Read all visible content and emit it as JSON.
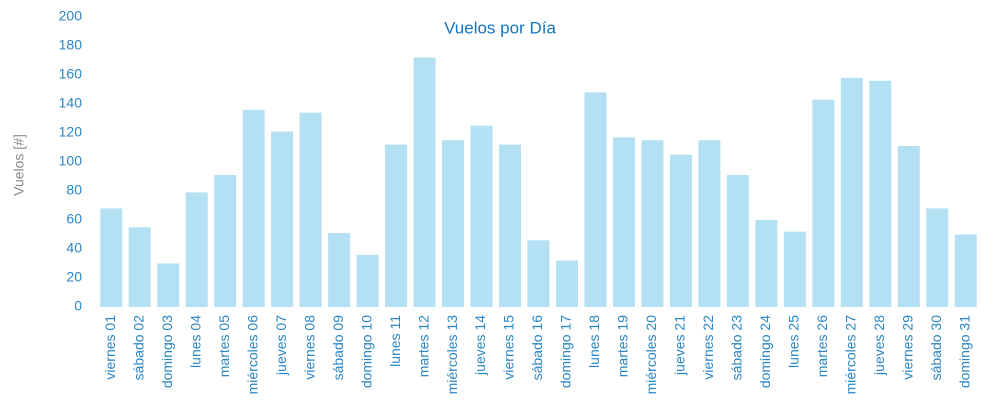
{
  "chart_data": {
    "type": "bar",
    "title": "Vuelos por Día",
    "y_label": "Vuelos [#]",
    "categories": [
      "viernes 01",
      "sábado 02",
      "domingo 03",
      "lunes 04",
      "martes 05",
      "miércoles 06",
      "jueves 07",
      "viernes 08",
      "sábado 09",
      "domingo 10",
      "lunes 11",
      "martes 12",
      "miércoles 13",
      "jueves 14",
      "viernes 15",
      "sábado 16",
      "domingo 17",
      "lunes 18",
      "martes 19",
      "miércoles 20",
      "jueves 21",
      "viernes 22",
      "sábado 23",
      "domingo 24",
      "lunes 25",
      "martes 26",
      "miércoles 27",
      "jueves 28",
      "viernes 29",
      "sábado 30",
      "domingo 31"
    ],
    "values": [
      68,
      55,
      30,
      79,
      91,
      136,
      121,
      134,
      51,
      36,
      112,
      172,
      115,
      125,
      112,
      46,
      32,
      148,
      117,
      115,
      105,
      115,
      91,
      60,
      52,
      143,
      158,
      156,
      111,
      68,
      50
    ],
    "color": "#b3e0f3",
    "ylim": [
      0,
      200
    ],
    "yticks": [
      0,
      20,
      40,
      60,
      80,
      100,
      120,
      140,
      160,
      180,
      200
    ],
    "grid": false
  }
}
